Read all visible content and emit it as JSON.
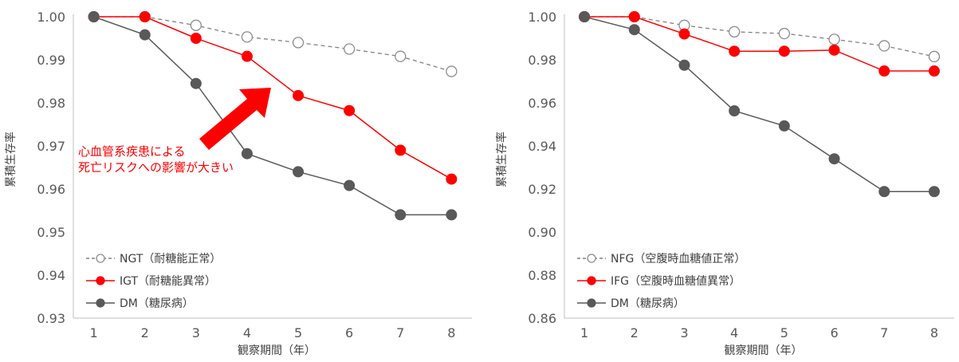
{
  "chart_data": [
    {
      "type": "line",
      "xlabel": "観察期間（年）",
      "ylabel": "累積生存率",
      "x": [
        1,
        2,
        3,
        4,
        5,
        6,
        7,
        8
      ],
      "xlim": [
        0.6,
        8.4
      ],
      "ylim": [
        0.93,
        1.0
      ],
      "yticks": [
        "0.93",
        "0.94",
        "0.95",
        "0.96",
        "0.97",
        "0.98",
        "0.99",
        "1.00"
      ],
      "ytick_values": [
        0.93,
        0.94,
        0.95,
        0.96,
        0.97,
        0.98,
        0.99,
        1.0
      ],
      "legend_position": "bottom-left",
      "series": [
        {
          "name": "NGT（耐糖能正常）",
          "values": [
            1.0,
            1.0,
            0.998,
            0.9953,
            0.994,
            0.9925,
            0.9908,
            0.9873
          ],
          "color": "#a6a6a6",
          "style": "dashed-open"
        },
        {
          "name": "IGT（耐糖能異常）",
          "values": [
            1.0,
            1.0,
            0.995,
            0.9908,
            0.9817,
            0.9782,
            0.969,
            0.9623
          ],
          "color": "#ff0000",
          "style": "solid-filled"
        },
        {
          "name": "DM（糖尿病）",
          "values": [
            1.0,
            0.9958,
            0.9845,
            0.9682,
            0.964,
            0.9608,
            0.954,
            0.954
          ],
          "color": "#595959",
          "style": "solid-filled"
        }
      ],
      "annotation": {
        "lines": [
          "心血管系疾患による",
          "死亡リスクへの影響が大きい"
        ],
        "color": "#ff0000"
      }
    },
    {
      "type": "line",
      "xlabel": "観察期間（年）",
      "ylabel": "累積生存率",
      "x": [
        1,
        2,
        3,
        4,
        5,
        6,
        7,
        8
      ],
      "xlim": [
        0.6,
        8.4
      ],
      "ylim": [
        0.86,
        1.0
      ],
      "yticks": [
        "0.86",
        "0.88",
        "0.90",
        "0.92",
        "0.94",
        "0.96",
        "0.98",
        "1.00"
      ],
      "ytick_values": [
        0.86,
        0.88,
        0.9,
        0.92,
        0.94,
        0.96,
        0.98,
        1.0
      ],
      "legend_position": "bottom-left",
      "series": [
        {
          "name": "NFG（空腹時血糖値正常）",
          "values": [
            1.0,
            1.0,
            0.996,
            0.993,
            0.9922,
            0.9895,
            0.9865,
            0.9815
          ],
          "color": "#a6a6a6",
          "style": "dashed-open"
        },
        {
          "name": "IFG（空腹時血糖値異常）",
          "values": [
            1.0,
            1.0,
            0.992,
            0.984,
            0.984,
            0.9845,
            0.9748,
            0.9748
          ],
          "color": "#ff0000",
          "style": "solid-filled"
        },
        {
          "name": "DM（糖尿病）",
          "values": [
            1.0,
            0.994,
            0.9775,
            0.9563,
            0.9493,
            0.934,
            0.9188,
            0.9188
          ],
          "color": "#595959",
          "style": "solid-filled"
        }
      ]
    }
  ]
}
